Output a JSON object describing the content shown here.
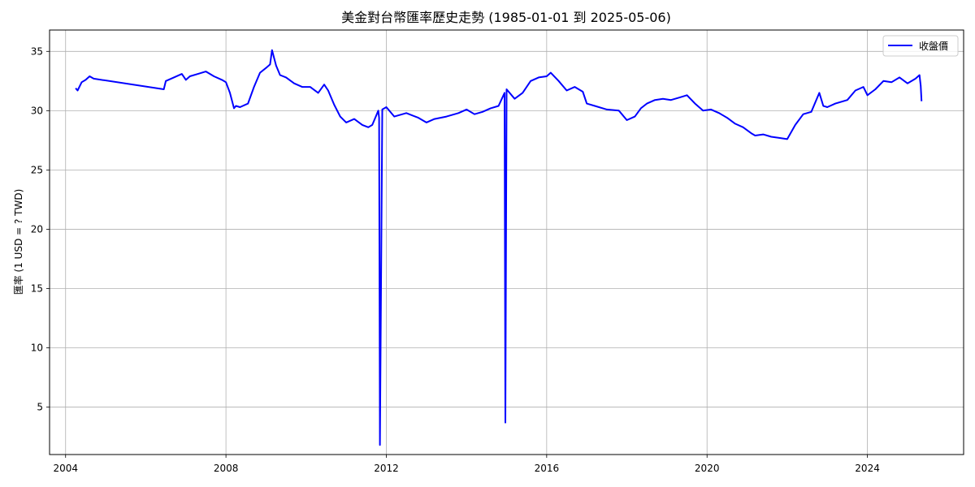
{
  "chart_data": {
    "type": "line",
    "title": "美金對台幣匯率歷史走勢 (1985-01-01 到 2025-05-06)",
    "xlabel": "",
    "ylabel": "匯率 (1 USD = ? TWD)",
    "xlim": [
      2003.6,
      2026.4
    ],
    "ylim": [
      1.0,
      36.8
    ],
    "x_ticks": [
      2004,
      2008,
      2012,
      2016,
      2020,
      2024
    ],
    "x_tick_labels": [
      "2004",
      "2008",
      "2012",
      "2016",
      "2020",
      "2024"
    ],
    "y_ticks": [
      5,
      10,
      15,
      20,
      25,
      30,
      35
    ],
    "y_tick_labels": [
      "5",
      "10",
      "15",
      "20",
      "25",
      "30",
      "35"
    ],
    "grid": true,
    "legend_position": "upper-right",
    "series": [
      {
        "name": "收盤價",
        "color": "#0000ff",
        "x": [
          2004.25,
          2004.3,
          2004.4,
          2004.5,
          2004.6,
          2004.7,
          2006.45,
          2006.5,
          2006.7,
          2006.9,
          2007.0,
          2007.1,
          2007.3,
          2007.5,
          2007.7,
          2007.9,
          2008.0,
          2008.1,
          2008.2,
          2008.25,
          2008.35,
          2008.55,
          2008.7,
          2008.85,
          2009.0,
          2009.1,
          2009.15,
          2009.25,
          2009.35,
          2009.5,
          2009.7,
          2009.9,
          2010.1,
          2010.3,
          2010.45,
          2010.55,
          2010.7,
          2010.85,
          2011.0,
          2011.2,
          2011.4,
          2011.55,
          2011.65,
          2011.75,
          2011.8,
          2011.82,
          2011.84,
          2011.9,
          2012.0,
          2012.2,
          2012.5,
          2012.8,
          2013.0,
          2013.2,
          2013.5,
          2013.8,
          2014.0,
          2014.2,
          2014.4,
          2014.6,
          2014.8,
          2014.95,
          2014.97,
          2015.0,
          2015.2,
          2015.4,
          2015.6,
          2015.8,
          2016.0,
          2016.1,
          2016.3,
          2016.5,
          2016.7,
          2016.9,
          2017.0,
          2017.2,
          2017.5,
          2017.8,
          2018.0,
          2018.2,
          2018.35,
          2018.5,
          2018.7,
          2018.9,
          2019.1,
          2019.3,
          2019.5,
          2019.7,
          2019.9,
          2020.1,
          2020.3,
          2020.5,
          2020.7,
          2020.9,
          2021.1,
          2021.2,
          2021.4,
          2021.6,
          2021.8,
          2022.0,
          2022.2,
          2022.4,
          2022.6,
          2022.8,
          2022.9,
          2023.0,
          2023.2,
          2023.5,
          2023.7,
          2023.9,
          2024.0,
          2024.2,
          2024.4,
          2024.6,
          2024.8,
          2025.0,
          2025.2,
          2025.3,
          2025.33,
          2025.35
        ],
        "y": [
          31.9,
          31.7,
          32.4,
          32.6,
          32.9,
          32.7,
          31.8,
          32.5,
          32.8,
          33.1,
          32.6,
          32.9,
          33.1,
          33.3,
          32.9,
          32.6,
          32.4,
          31.5,
          30.2,
          30.4,
          30.3,
          30.6,
          32.0,
          33.2,
          33.6,
          33.9,
          35.1,
          33.8,
          33.0,
          32.8,
          32.3,
          32.0,
          32.0,
          31.5,
          32.2,
          31.7,
          30.5,
          29.5,
          29.0,
          29.3,
          28.8,
          28.6,
          28.8,
          29.6,
          30.0,
          29.4,
          1.8,
          30.1,
          30.3,
          29.5,
          29.8,
          29.4,
          29.0,
          29.3,
          29.5,
          29.8,
          30.1,
          29.7,
          29.9,
          30.2,
          30.4,
          31.5,
          3.7,
          31.8,
          31.0,
          31.5,
          32.5,
          32.8,
          32.9,
          33.2,
          32.5,
          31.7,
          32.0,
          31.6,
          30.6,
          30.4,
          30.1,
          30.0,
          29.2,
          29.5,
          30.2,
          30.6,
          30.9,
          31.0,
          30.9,
          31.1,
          31.3,
          30.6,
          30.0,
          30.1,
          29.8,
          29.4,
          28.9,
          28.6,
          28.1,
          27.9,
          28.0,
          27.8,
          27.7,
          27.6,
          28.8,
          29.7,
          29.9,
          31.5,
          30.4,
          30.3,
          30.6,
          30.9,
          31.7,
          32.0,
          31.3,
          31.8,
          32.5,
          32.4,
          32.8,
          32.3,
          32.7,
          33.0,
          32.1,
          30.8
        ]
      }
    ]
  }
}
